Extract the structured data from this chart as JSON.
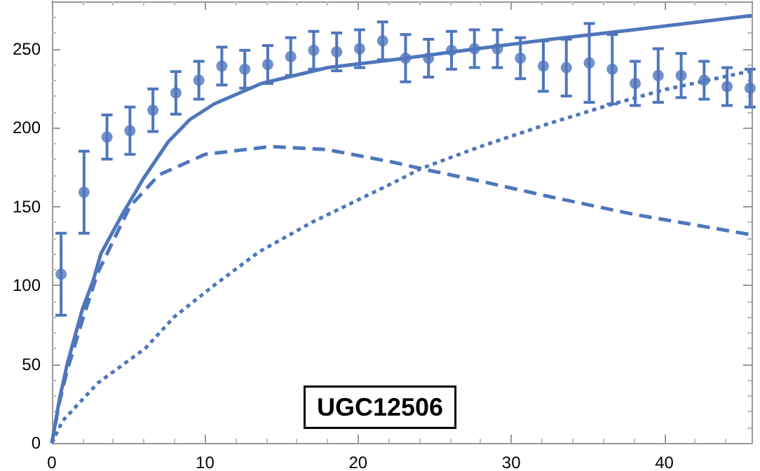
{
  "chart_data": {
    "type": "scatter",
    "annotations": [
      "UGC12506"
    ],
    "xlim": [
      0,
      45.7
    ],
    "xticks": [
      0,
      10,
      20,
      30,
      40
    ],
    "ylim": [
      0,
      280
    ],
    "yticks": [
      0,
      50,
      100,
      150,
      200,
      250
    ],
    "grid": false,
    "series": [
      {
        "marker": "circle",
        "color": "#4f76bc",
        "x": [
          0.6,
          2.1,
          3.6,
          5.1,
          6.6,
          8.1,
          9.6,
          11.1,
          12.6,
          14.1,
          15.6,
          17.1,
          18.6,
          20.1,
          21.6,
          23.1,
          24.6,
          26.1,
          27.6,
          29.1,
          30.6,
          32.1,
          33.6,
          35.1,
          36.6,
          38.1,
          39.6,
          41.1,
          42.6,
          44.1,
          45.6
        ],
        "values": [
          107,
          159,
          194,
          198,
          211,
          222,
          230,
          239,
          237,
          240,
          245,
          249,
          248,
          250,
          255,
          244,
          244,
          249,
          250,
          250,
          244,
          239,
          238,
          241,
          237,
          228,
          233,
          233,
          230,
          226,
          225
        ],
        "errors": [
          26,
          26,
          14,
          15,
          13.5,
          13.5,
          12,
          12,
          12,
          12,
          12,
          12,
          12,
          12,
          12,
          15,
          12,
          12,
          12,
          12,
          13,
          16,
          18,
          25,
          22,
          14,
          17,
          14,
          12,
          12,
          12
        ]
      },
      {
        "type": "line",
        "color": "#4f76bc",
        "line_style": "solid",
        "marker": "none",
        "x": [
          0,
          0.5,
          1,
          2,
          2.7,
          3.2,
          4.6,
          6,
          7.6,
          9,
          10.6,
          13.7,
          18,
          22.3,
          27,
          32.6,
          38,
          45.7
        ],
        "values": [
          0,
          28,
          50,
          85,
          103,
          120,
          145,
          168,
          191,
          205,
          215,
          228,
          238,
          243,
          249,
          256,
          262,
          271
        ]
      },
      {
        "type": "line",
        "color": "#4f76bc",
        "line_style": "dashed",
        "marker": "none",
        "x": [
          0,
          0.5,
          1,
          2,
          3,
          5.1,
          7,
          10,
          14.3,
          18,
          22.3,
          24.1,
          28,
          32.6,
          38,
          45.7
        ],
        "values": [
          0,
          26,
          46,
          78,
          108,
          150,
          170,
          183,
          188,
          186,
          178,
          174,
          166,
          156,
          145,
          132
        ]
      },
      {
        "type": "line",
        "color": "#4f76bc",
        "line_style": "dotted",
        "marker": "none",
        "x": [
          0,
          0.7,
          3,
          6.1,
          8,
          10.6,
          13.5,
          17,
          22.3,
          24.1,
          28,
          32.6,
          36.3,
          40,
          45.7
        ],
        "values": [
          0,
          14,
          38,
          60,
          80,
          100,
          121,
          140,
          165,
          174,
          188,
          203,
          214,
          224,
          236
        ]
      }
    ]
  }
}
